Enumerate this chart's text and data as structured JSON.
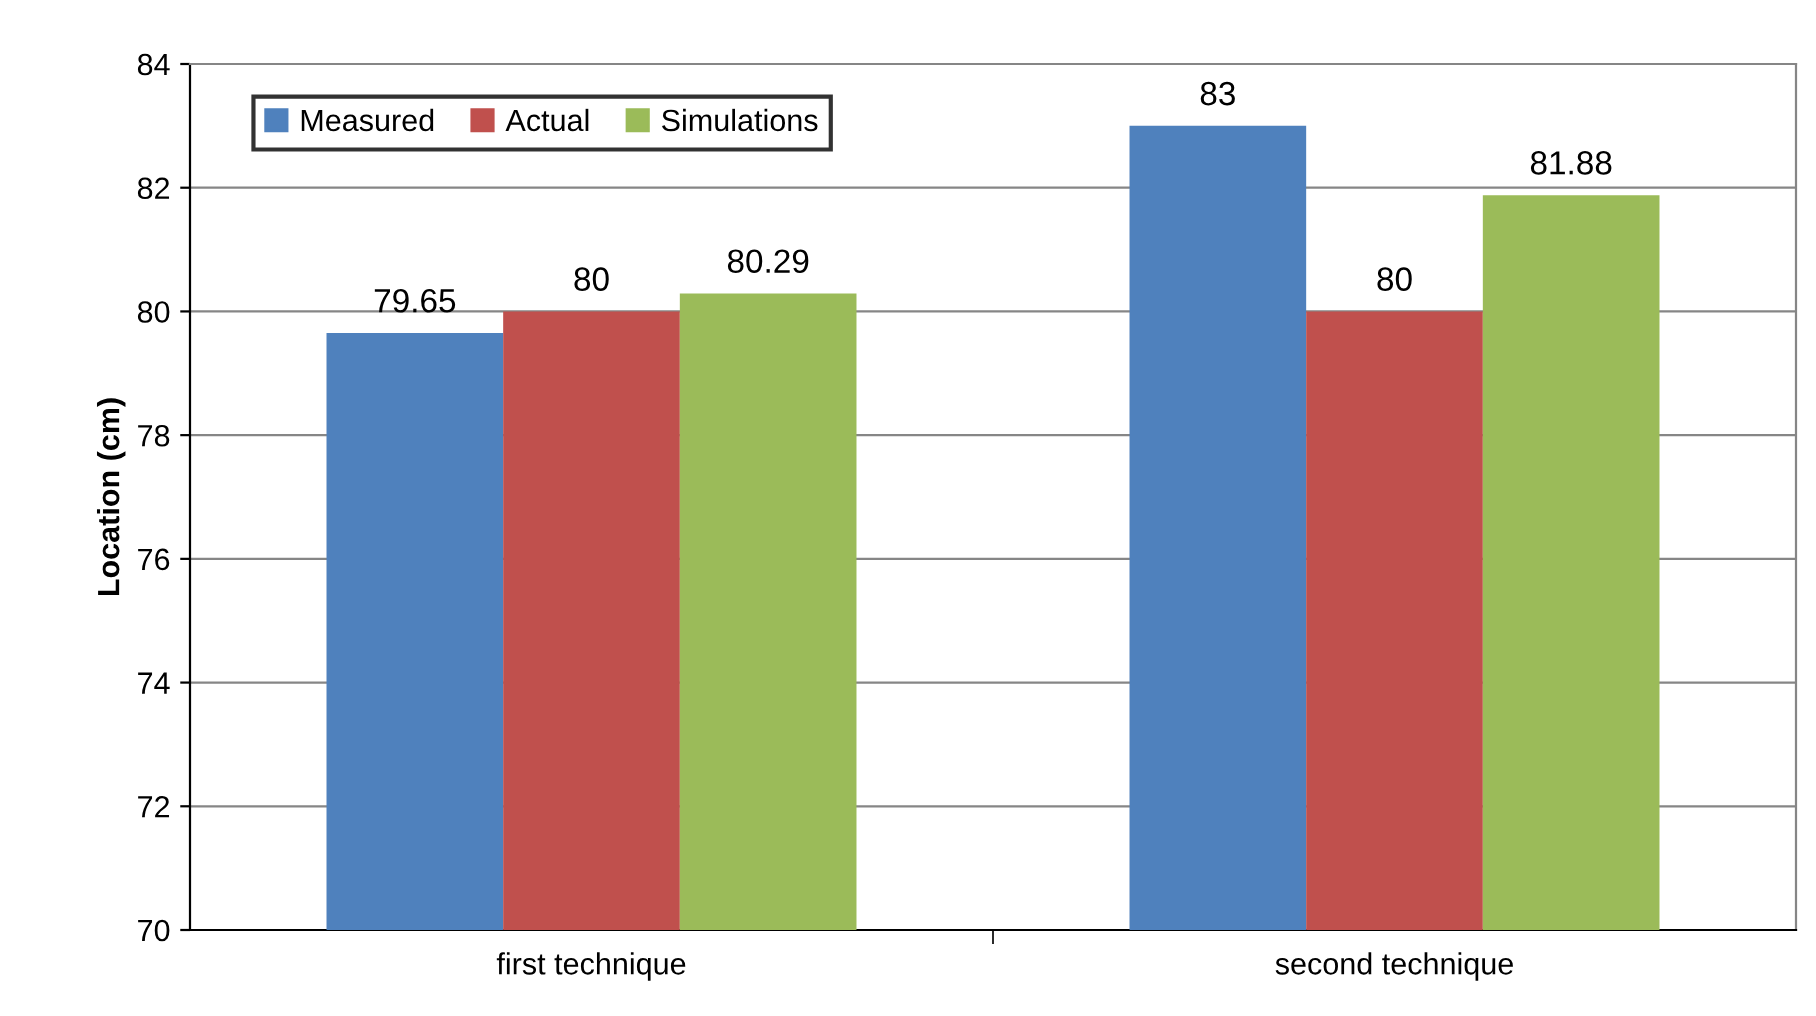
{
  "chart_data": {
    "type": "bar",
    "ylabel": "Location (cm)",
    "categories": [
      "first technique",
      "second technique"
    ],
    "series": [
      {
        "name": "Measured",
        "color": "#4f81bd",
        "values": [
          79.65,
          83
        ]
      },
      {
        "name": "Actual",
        "color": "#c0504d",
        "values": [
          80,
          80
        ]
      },
      {
        "name": "Simulations",
        "color": "#9bbb59",
        "values": [
          80.29,
          81.88
        ]
      }
    ],
    "ylim": [
      70,
      84
    ],
    "yticks": [
      70,
      72,
      74,
      76,
      78,
      80,
      82,
      84
    ],
    "grid": "y",
    "legend": "top left",
    "data_labels": true
  }
}
